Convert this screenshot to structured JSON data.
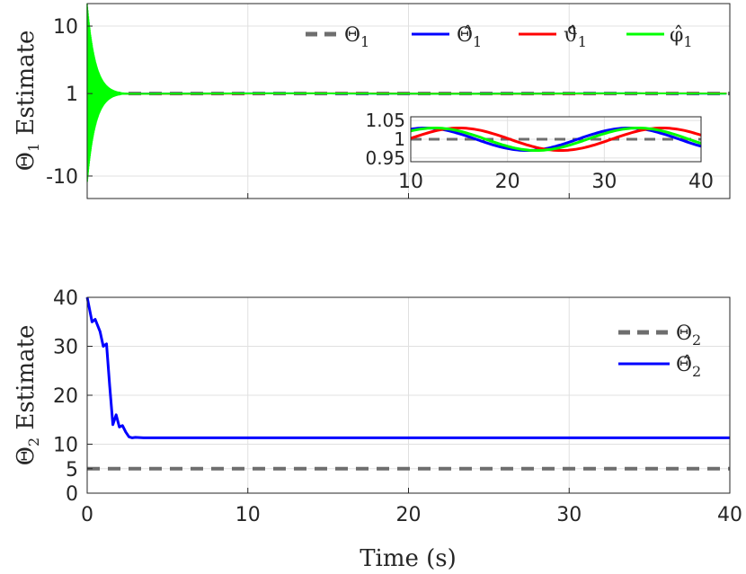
{
  "chart_data": [
    {
      "id": "top",
      "type": "line",
      "ylabel": "Θ",
      "ylabel_sub": "1",
      "ylabel_rest": " Estimate",
      "xlim": [
        0,
        40
      ],
      "ylim": [
        -13,
        13
      ],
      "x_ticks": [
        0,
        10,
        20,
        30,
        40
      ],
      "y_ticks": [
        -10,
        1,
        10
      ],
      "y_tick_labels": [
        "-10",
        "1",
        "10"
      ],
      "grid": true,
      "legend_placement": "top-right, horizontal",
      "series": [
        {
          "key": "theta",
          "name": "Θ",
          "sub": "1",
          "style": "dashed",
          "color": "#6e6e6e",
          "constant": 1
        },
        {
          "key": "theta_hat",
          "name": "Θ̂",
          "sub": "1",
          "style": "solid",
          "color": "#0000ff",
          "mean": 1.0,
          "amplitude": 0.03,
          "period": 21,
          "phase_x": 11.5
        },
        {
          "key": "vartheta_hat",
          "name": "ϑ̂",
          "sub": "1",
          "style": "solid",
          "color": "#ff0000",
          "mean": 1.0,
          "amplitude": 0.03,
          "period": 21,
          "phase_x": 15.0
        },
        {
          "key": "varphi_hat",
          "name": "φ̂",
          "sub": "1",
          "style": "solid",
          "color": "#00ff00",
          "mean": 1.0,
          "amplitude": 0.03,
          "period": 21,
          "phase_x": 12.5,
          "initial_oscillation": {
            "amplitude": 12,
            "decay_until": 2.5
          }
        }
      ],
      "inset": {
        "xlim": [
          10,
          40
        ],
        "ylim": [
          0.94,
          1.06
        ],
        "x_ticks": [
          10,
          20,
          30,
          40
        ],
        "y_ticks": [
          0.95,
          1,
          1.05
        ],
        "y_tick_labels": [
          "0.95",
          "1",
          "1.05"
        ]
      }
    },
    {
      "id": "bottom",
      "type": "line",
      "xlabel": "Time (s)",
      "ylabel": "Θ",
      "ylabel_sub": "2",
      "ylabel_rest": " Estimate",
      "xlim": [
        0,
        40
      ],
      "ylim": [
        0,
        40
      ],
      "x_ticks": [
        0,
        10,
        20,
        30,
        40
      ],
      "y_ticks": [
        0,
        5,
        10,
        20,
        30,
        40
      ],
      "grid": true,
      "legend_placement": "top-right, vertical",
      "series": [
        {
          "key": "theta2",
          "name": "Θ",
          "sub": "2",
          "style": "dashed",
          "color": "#6e6e6e",
          "constant": 5
        },
        {
          "key": "theta2_hat",
          "name": "Θ̂",
          "sub": "2",
          "style": "solid",
          "color": "#0000ff",
          "x": [
            0,
            0.3,
            0.5,
            0.8,
            1.0,
            1.2,
            1.4,
            1.6,
            1.8,
            2.0,
            2.2,
            2.4,
            2.6,
            2.8,
            3.0,
            3.5,
            5,
            10,
            20,
            30,
            40
          ],
          "y": [
            40,
            35,
            35.5,
            33,
            30,
            30.5,
            22,
            14,
            16,
            13.5,
            13.8,
            12.5,
            11.5,
            11.3,
            11.4,
            11.3,
            11.3,
            11.3,
            11.3,
            11.3,
            11.3
          ]
        }
      ]
    }
  ]
}
